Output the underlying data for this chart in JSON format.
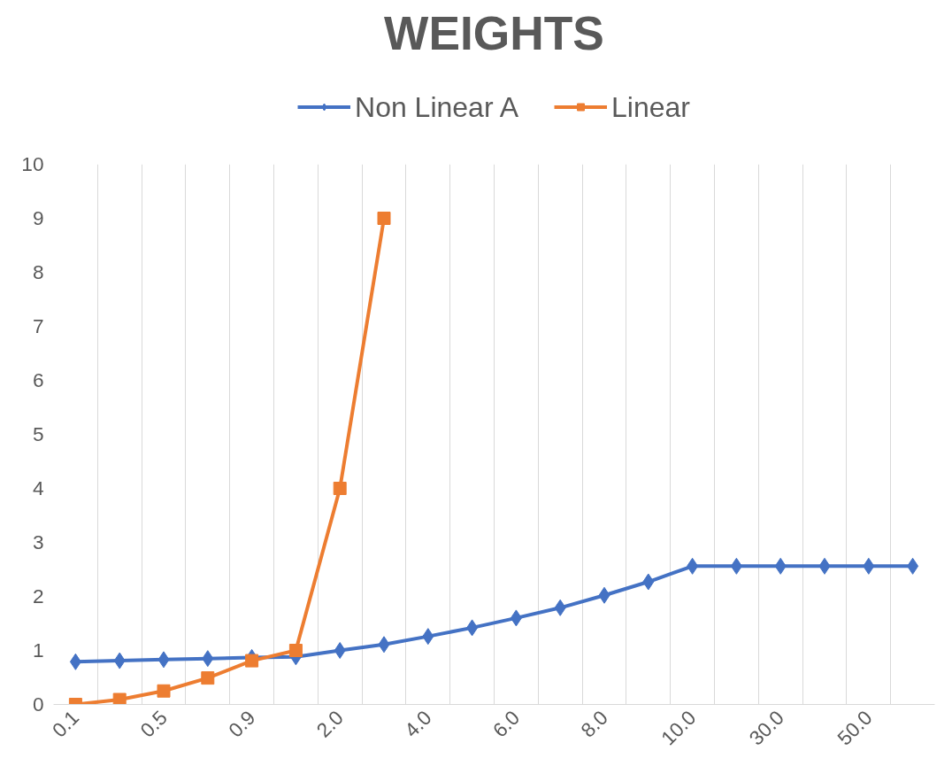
{
  "chart_data": {
    "type": "line",
    "title": "WEIGHTS",
    "categories": [
      "0.1",
      null,
      "0.5",
      null,
      "0.9",
      null,
      "2.0",
      null,
      "4.0",
      null,
      "6.0",
      null,
      "8.0",
      null,
      "10.0",
      null,
      "30.0",
      null,
      "50.0",
      null
    ],
    "series": [
      {
        "name": "Non Linear A",
        "color": "#4472c4",
        "marker": "diamond",
        "values": [
          0.79,
          0.81,
          0.83,
          0.85,
          0.87,
          0.88,
          1.0,
          1.11,
          1.26,
          1.42,
          1.6,
          1.79,
          2.02,
          2.27,
          2.56,
          2.56,
          2.56,
          2.56,
          2.56,
          2.56
        ]
      },
      {
        "name": "Linear",
        "color": "#ed7d31",
        "marker": "square",
        "values": [
          0,
          0.09,
          0.25,
          0.49,
          0.81,
          1.0,
          4,
          9,
          null,
          null,
          null,
          null,
          null,
          null,
          null,
          null,
          null,
          null,
          null,
          null
        ]
      }
    ],
    "ylim": [
      0,
      10
    ],
    "yticks": [
      0,
      1,
      2,
      3,
      4,
      5,
      6,
      7,
      8,
      9,
      10
    ],
    "grid": "x",
    "legend": "top",
    "line_style": "solid"
  }
}
